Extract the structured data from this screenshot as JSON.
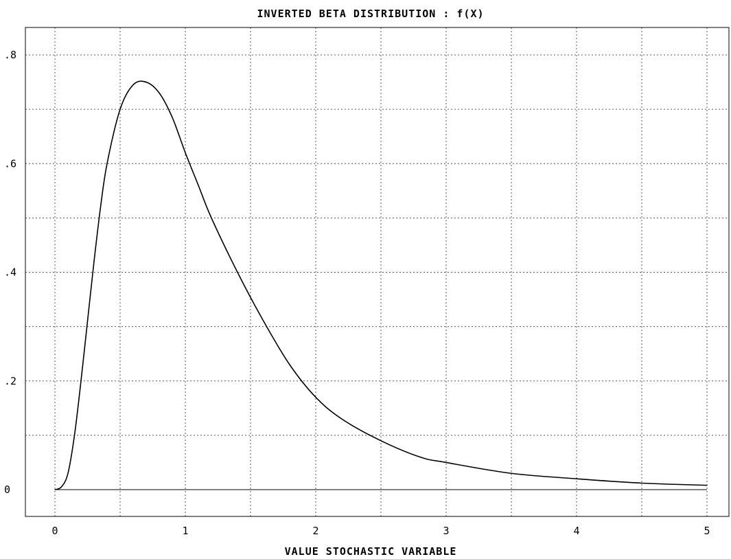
{
  "chart_data": {
    "type": "line",
    "title": "INVERTED BETA DISTRIBUTION : f(X)",
    "xlabel": "VALUE STOCHASTIC VARIABLE",
    "ylabel": "",
    "xlim": [
      0,
      5
    ],
    "ylim": [
      0,
      0.8
    ],
    "x_ticks": [
      0,
      1,
      2,
      3,
      4,
      5
    ],
    "x_tick_labels": [
      "0",
      "1",
      "2",
      "3",
      "4",
      "5"
    ],
    "y_ticks": [
      0,
      0.2,
      0.4,
      0.6,
      0.8
    ],
    "y_tick_labels": [
      "0",
      ".2",
      ".4",
      ".6",
      ".8"
    ],
    "grid": true,
    "series": [
      {
        "name": "",
        "x": [
          0,
          0.05,
          0.1,
          0.15,
          0.2,
          0.25,
          0.3,
          0.35,
          0.4,
          0.5,
          0.6,
          0.7,
          0.8,
          0.9,
          1.0,
          1.1,
          1.2,
          1.4,
          1.6,
          1.8,
          2.0,
          2.2,
          2.5,
          2.8,
          3.0,
          3.5,
          4.0,
          4.5,
          5.0
        ],
        "y": [
          0,
          0.005,
          0.03,
          0.1,
          0.2,
          0.31,
          0.42,
          0.52,
          0.6,
          0.7,
          0.745,
          0.75,
          0.73,
          0.685,
          0.62,
          0.56,
          0.5,
          0.4,
          0.31,
          0.23,
          0.17,
          0.13,
          0.09,
          0.06,
          0.05,
          0.03,
          0.02,
          0.012,
          0.008
        ]
      }
    ]
  }
}
